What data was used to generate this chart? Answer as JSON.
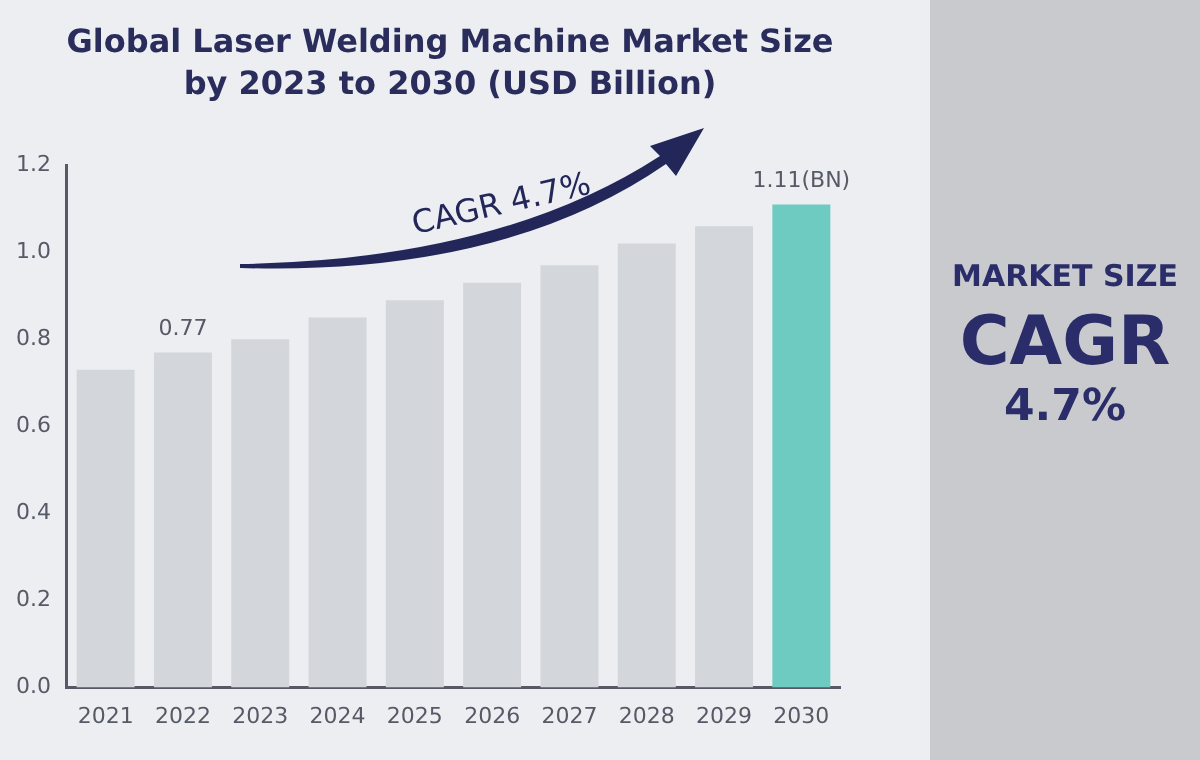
{
  "chart_data": {
    "type": "bar",
    "title": "Global Laser Welding Machine Market Size by 2023 to 2030 (USD Billion)",
    "categories": [
      "2021",
      "2022",
      "2023",
      "2024",
      "2025",
      "2026",
      "2027",
      "2028",
      "2029",
      "2030"
    ],
    "values": [
      0.73,
      0.77,
      0.8,
      0.85,
      0.89,
      0.93,
      0.97,
      1.02,
      1.06,
      1.11
    ],
    "colors": [
      "#d3d6db",
      "#d3d6db",
      "#d3d6db",
      "#d3d6db",
      "#d3d6db",
      "#d3d6db",
      "#d3d6db",
      "#d3d6db",
      "#d3d6db",
      "#6dcbc1"
    ],
    "value_labels": [
      null,
      "0.77",
      null,
      null,
      null,
      null,
      null,
      null,
      null,
      "1.11(BN)"
    ],
    "ylim": [
      0,
      1.2
    ],
    "yticks": [
      {
        "value": 0,
        "label": "0.0"
      },
      {
        "value": 0.2,
        "label": "0.2"
      },
      {
        "value": 0.4,
        "label": "0.4"
      },
      {
        "value": 0.6,
        "label": "0.6"
      },
      {
        "value": 0.8,
        "label": "0.8"
      },
      {
        "value": 1,
        "label": "1.0"
      },
      {
        "value": 1.2,
        "label": "1.2"
      }
    ],
    "grid": false,
    "legend": false,
    "annotations": [
      "CAGR 4.7%",
      "MARKET SIZE",
      "CAGR",
      "4.7%"
    ]
  }
}
